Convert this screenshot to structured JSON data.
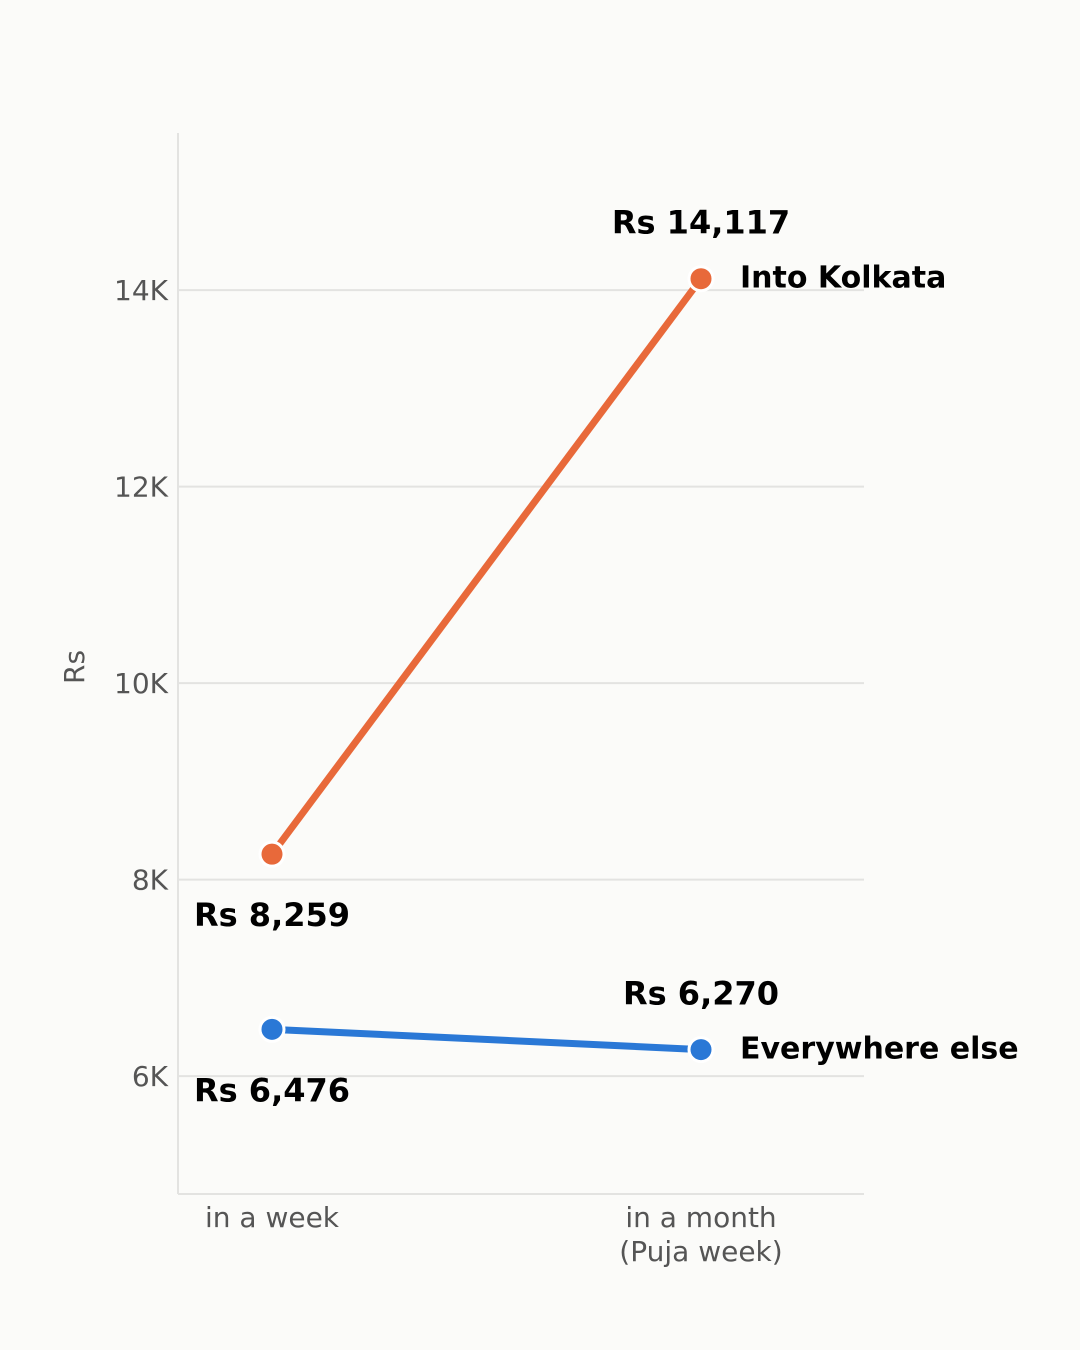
{
  "chart_data": {
    "type": "line",
    "title": "",
    "xlabel": "",
    "ylabel": "Rs",
    "categories": [
      [
        "in a week"
      ],
      [
        "in a month",
        "(Puja week)"
      ]
    ],
    "y_ticks": [
      {
        "value": 6000,
        "label": "6K"
      },
      {
        "value": 8000,
        "label": "8K"
      },
      {
        "value": 10000,
        "label": "10K"
      },
      {
        "value": 12000,
        "label": "12K"
      },
      {
        "value": 14000,
        "label": "14K"
      }
    ],
    "ylim": [
      4800,
      15600
    ],
    "grid": "horizontal",
    "series": [
      {
        "name": "Into Kolkata",
        "color": "#e8693a",
        "values": [
          8259,
          14117
        ],
        "value_labels": [
          "Rs 8,259",
          "Rs 14,117"
        ],
        "label_positions": [
          "below",
          "above"
        ]
      },
      {
        "name": "Everywhere else",
        "color": "#2a78d6",
        "values": [
          6476,
          6270
        ],
        "value_labels": [
          "Rs 6,476",
          "Rs 6,270"
        ],
        "label_positions": [
          "below",
          "above"
        ]
      }
    ]
  }
}
